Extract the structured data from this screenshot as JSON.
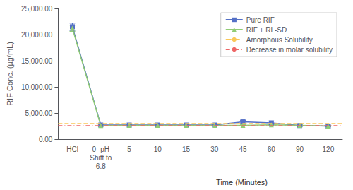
{
  "chart_data": {
    "type": "line",
    "categories": [
      "HCl",
      "0 -pH\nShift to\n6.8",
      "5",
      "10",
      "15",
      "30",
      "45",
      "60",
      "90",
      "120"
    ],
    "series": [
      {
        "name": "Pure RIF",
        "values": [
          21500,
          2700,
          2700,
          2700,
          2700,
          2700,
          3300,
          3100,
          2600,
          2500
        ],
        "errors": [
          700,
          200,
          150,
          150,
          150,
          150,
          300,
          350,
          200,
          150
        ],
        "marker": "square"
      },
      {
        "name": "RIF + RL-SD",
        "values": [
          21200,
          2600,
          2650,
          2650,
          2650,
          2650,
          2650,
          2750,
          2650,
          2500
        ],
        "errors": [
          600,
          150,
          100,
          100,
          100,
          100,
          100,
          150,
          100,
          100
        ],
        "marker": "triangle"
      },
      {
        "name": "Amorphous Solubility",
        "type": "hline",
        "y": 3000,
        "line_style": "dashed"
      },
      {
        "name": "Decrease in molar solubility",
        "type": "hline",
        "y": 2600,
        "line_style": "dashdot"
      }
    ],
    "ylabel": "RIF Conc. (µg/mL)",
    "xlabel": "Time (Minutes)",
    "ylim": [
      0,
      25000
    ],
    "yticks": [
      {
        "value": 0,
        "label": "0.00"
      },
      {
        "value": 5000,
        "label": "5,000.00"
      },
      {
        "value": 10000,
        "label": "10,000.00"
      },
      {
        "value": 15000,
        "label": "15,000.00"
      },
      {
        "value": 20000,
        "label": "20,000.00"
      },
      {
        "value": 25000,
        "label": "25,000.00"
      }
    ],
    "grid": false,
    "legend": "upper right"
  }
}
